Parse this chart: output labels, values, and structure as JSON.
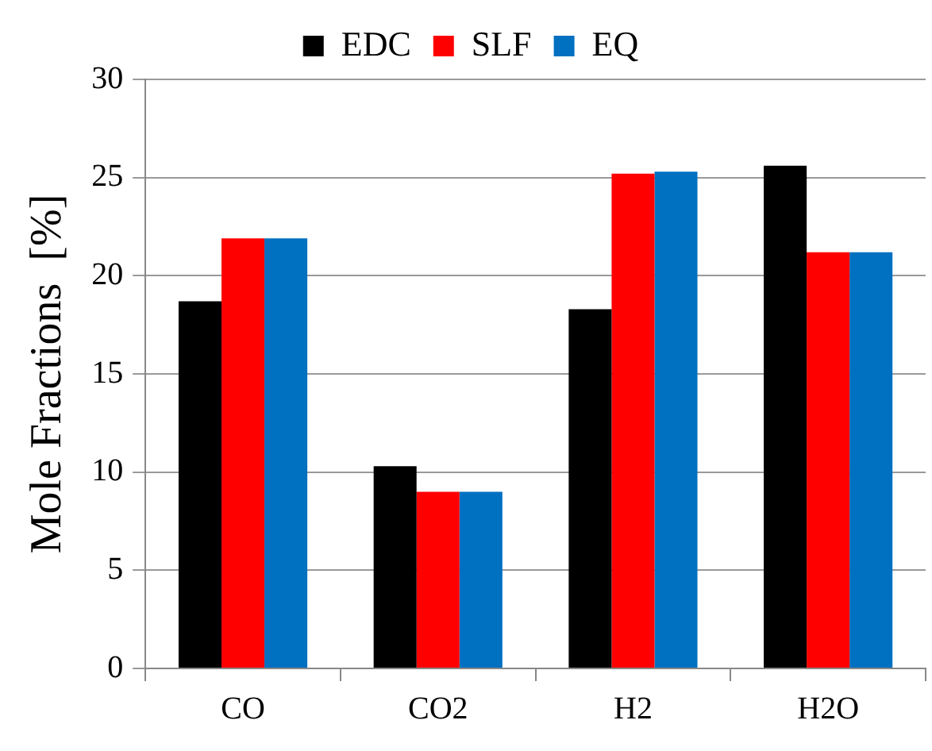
{
  "chart_data": {
    "type": "bar",
    "ylabel": "Mole Fractions  [%]",
    "categories": [
      "CO",
      "CO2",
      "H2",
      "H2O"
    ],
    "series": [
      {
        "name": "EDC",
        "color": "#000000",
        "values": [
          18.7,
          10.3,
          18.3,
          25.6
        ]
      },
      {
        "name": "SLF",
        "color": "#ff0000",
        "values": [
          21.9,
          9.0,
          25.2,
          21.2
        ]
      },
      {
        "name": "EQ",
        "color": "#0070c0",
        "values": [
          21.9,
          9.0,
          25.3,
          21.2
        ]
      }
    ],
    "ylim": [
      0,
      30
    ],
    "yticks": [
      0,
      5,
      10,
      15,
      20,
      25,
      30
    ],
    "grid": "y",
    "legend": "top"
  }
}
